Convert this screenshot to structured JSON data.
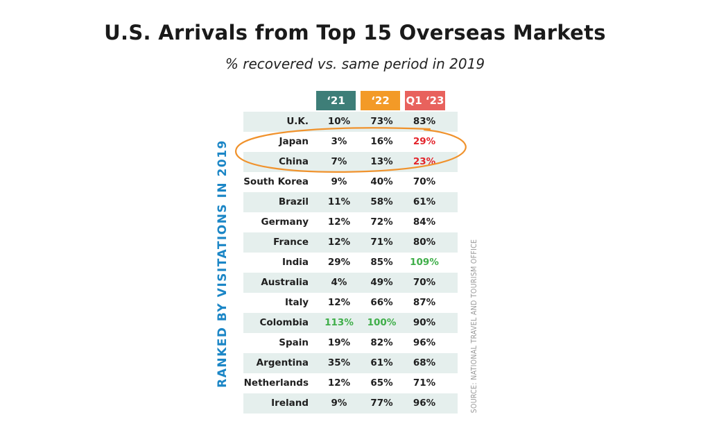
{
  "title": "U.S. Arrivals from Top 15 Overseas Markets",
  "subtitle": "% recovered vs. same period in 2019",
  "side_label": "RANKED BY VISITATIONS IN 2019",
  "source": "SOURCE: NATIONAL TRAVEL AND TOURISM OFFICE",
  "colors": {
    "header_21": "#3e7e78",
    "header_22": "#f39a27",
    "header_23": "#e8625d",
    "highlight_red": "#e3242b",
    "highlight_green": "#3fae49",
    "ellipse": "#f0922c",
    "row_shade": "#e5efed",
    "side_label": "#1b86c6"
  },
  "chart_data": {
    "type": "table",
    "columns": [
      "‘21",
      "‘22",
      "Q1 ‘23"
    ],
    "rows": [
      {
        "country": "U.K.",
        "v21": "10%",
        "v22": "73%",
        "v23": "83%"
      },
      {
        "country": "Japan",
        "v21": "3%",
        "v22": "16%",
        "v23": "29%",
        "v23_color": "red"
      },
      {
        "country": "China",
        "v21": "7%",
        "v22": "13%",
        "v23": "23%",
        "v23_color": "red"
      },
      {
        "country": "South Korea",
        "v21": "9%",
        "v22": "40%",
        "v23": "70%"
      },
      {
        "country": "Brazil",
        "v21": "11%",
        "v22": "58%",
        "v23": "61%"
      },
      {
        "country": "Germany",
        "v21": "12%",
        "v22": "72%",
        "v23": "84%"
      },
      {
        "country": "France",
        "v21": "12%",
        "v22": "71%",
        "v23": "80%"
      },
      {
        "country": "India",
        "v21": "29%",
        "v22": "85%",
        "v23": "109%",
        "v23_color": "green"
      },
      {
        "country": "Australia",
        "v21": "4%",
        "v22": "49%",
        "v23": "70%"
      },
      {
        "country": "Italy",
        "v21": "12%",
        "v22": "66%",
        "v23": "87%"
      },
      {
        "country": "Colombia",
        "v21": "113%",
        "v22": "100%",
        "v23": "90%",
        "v21_color": "green",
        "v22_color": "green"
      },
      {
        "country": "Spain",
        "v21": "19%",
        "v22": "82%",
        "v23": "96%"
      },
      {
        "country": "Argentina",
        "v21": "35%",
        "v22": "61%",
        "v23": "68%"
      },
      {
        "country": "Netherlands",
        "v21": "12%",
        "v22": "65%",
        "v23": "71%"
      },
      {
        "country": "Ireland",
        "v21": "9%",
        "v22": "77%",
        "v23": "96%"
      }
    ],
    "highlighted_rows": [
      "Japan",
      "China"
    ]
  }
}
